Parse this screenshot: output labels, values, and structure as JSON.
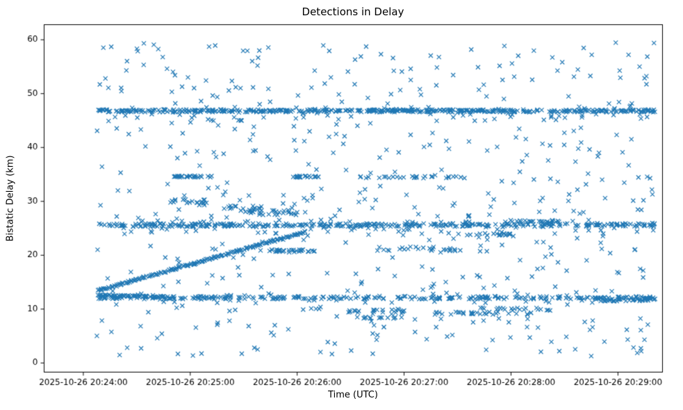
{
  "chart_data": {
    "type": "scatter",
    "title": "Detections in Delay",
    "xlabel": "Time (UTC)",
    "ylabel": "Bistatic Delay (km)",
    "marker": "x",
    "color": "#1f77b4",
    "grid": false,
    "legend": null,
    "y_ticks": [
      0,
      10,
      20,
      30,
      40,
      50,
      60
    ],
    "ylim": [
      -1.7,
      62.8
    ],
    "x_tick_labels": [
      "2025-10-26 20:24:00",
      "2025-10-26 20:25:00",
      "2025-10-26 20:26:00",
      "2025-10-26 20:27:00",
      "2025-10-26 20:28:00",
      "2025-10-26 20:29:00"
    ],
    "x_tick_seconds": [
      0,
      60,
      120,
      180,
      240,
      300
    ],
    "x_range_seconds": [
      -22,
      325
    ],
    "seed": 42,
    "bands": [
      {
        "name": "strong-band-46.8",
        "y": 46.8,
        "y_jitter": 0.25,
        "t0": 8,
        "t1": 322,
        "n": 430
      },
      {
        "name": "halo-band-46",
        "y": 46.2,
        "y_jitter": 1.3,
        "t0": 8,
        "t1": 322,
        "n": 60
      },
      {
        "name": "strong-band-25.6",
        "y": 25.6,
        "y_jitter": 0.3,
        "t0": 8,
        "t1": 322,
        "n": 310
      },
      {
        "name": "halo-band-25",
        "y": 25.3,
        "y_jitter": 1.4,
        "t0": 8,
        "t1": 322,
        "n": 80
      },
      {
        "name": "band-12.1",
        "y": 12.1,
        "y_jitter": 0.25,
        "t0": 8,
        "t1": 322,
        "n": 235
      },
      {
        "name": "halo-band-12",
        "y": 12.0,
        "y_jitter": 0.9,
        "t0": 8,
        "t1": 322,
        "n": 55
      },
      {
        "name": "segment-34.6-a",
        "y": 34.6,
        "y_jitter": 0.15,
        "t0": 50,
        "t1": 72,
        "n": 26
      },
      {
        "name": "segment-34.6-b",
        "y": 34.6,
        "y_jitter": 0.15,
        "t0": 115,
        "t1": 132,
        "n": 22
      },
      {
        "name": "segment-34.6-c",
        "y": 34.5,
        "y_jitter": 0.2,
        "t0": 155,
        "t1": 215,
        "n": 30
      },
      {
        "name": "segment-30",
        "y": 30.0,
        "y_jitter": 0.35,
        "t0": 48,
        "t1": 72,
        "n": 18
      },
      {
        "name": "segment-29",
        "y": 28.9,
        "y_jitter": 0.3,
        "t0": 78,
        "t1": 100,
        "n": 14
      },
      {
        "name": "segment-28",
        "y": 28.2,
        "y_jitter": 0.35,
        "t0": 92,
        "t1": 115,
        "n": 16
      },
      {
        "name": "segment-27.7",
        "y": 27.7,
        "y_jitter": 0.3,
        "t0": 98,
        "t1": 126,
        "n": 14
      },
      {
        "name": "segment-20.8",
        "y": 20.8,
        "y_jitter": 0.25,
        "t0": 98,
        "t1": 130,
        "n": 30
      },
      {
        "name": "segment-21.2",
        "y": 21.2,
        "y_jitter": 0.4,
        "t0": 165,
        "t1": 215,
        "n": 26
      },
      {
        "name": "segment-23.8",
        "y": 23.8,
        "y_jitter": 0.3,
        "t0": 215,
        "t1": 245,
        "n": 18
      },
      {
        "name": "segment-26.3",
        "y": 26.3,
        "y_jitter": 0.2,
        "t0": 235,
        "t1": 268,
        "n": 24
      },
      {
        "name": "segment-9.6",
        "y": 9.6,
        "y_jitter": 0.3,
        "t0": 148,
        "t1": 180,
        "n": 20
      },
      {
        "name": "segment-8.4",
        "y": 8.4,
        "y_jitter": 0.2,
        "t0": 152,
        "t1": 176,
        "n": 14
      },
      {
        "name": "segment-9.2",
        "y": 9.2,
        "y_jitter": 0.3,
        "t0": 195,
        "t1": 252,
        "n": 30
      },
      {
        "name": "segment-10.0",
        "y": 10.0,
        "y_jitter": 0.3,
        "t0": 222,
        "t1": 262,
        "n": 20
      },
      {
        "name": "segment-11.8",
        "y": 11.8,
        "y_jitter": 0.35,
        "t0": 288,
        "t1": 322,
        "n": 42
      }
    ],
    "tracks": [
      {
        "name": "rising-track",
        "t0": 8,
        "t1": 125,
        "y0": 13.4,
        "y1": 24.4,
        "n": 175,
        "y_jitter": 0.15
      },
      {
        "name": "early-flat-track",
        "t0": 8,
        "t1": 46,
        "y0": 12.6,
        "y1": 12.3,
        "n": 40,
        "y_jitter": 0.12
      }
    ],
    "random_scatter": {
      "n": 540,
      "t0": 6,
      "t1": 321,
      "y_min": 1.0,
      "y_max": 59.6
    }
  }
}
